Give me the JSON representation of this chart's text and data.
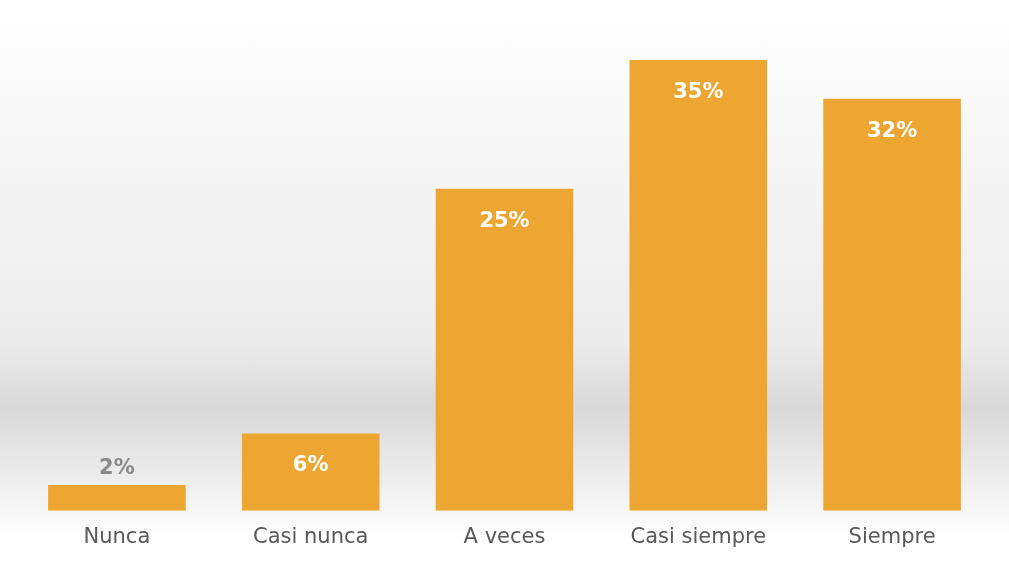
{
  "chart_data": {
    "type": "bar",
    "categories": [
      "Nunca",
      "Casi nunca",
      "A veces",
      "Casi siempre",
      "Siempre"
    ],
    "values": [
      2,
      6,
      25,
      35,
      32
    ],
    "color": "#eda631",
    "value_labels": [
      "2%",
      "6%",
      "25%",
      "35%",
      "32%"
    ],
    "grid": false,
    "legend": false
  }
}
